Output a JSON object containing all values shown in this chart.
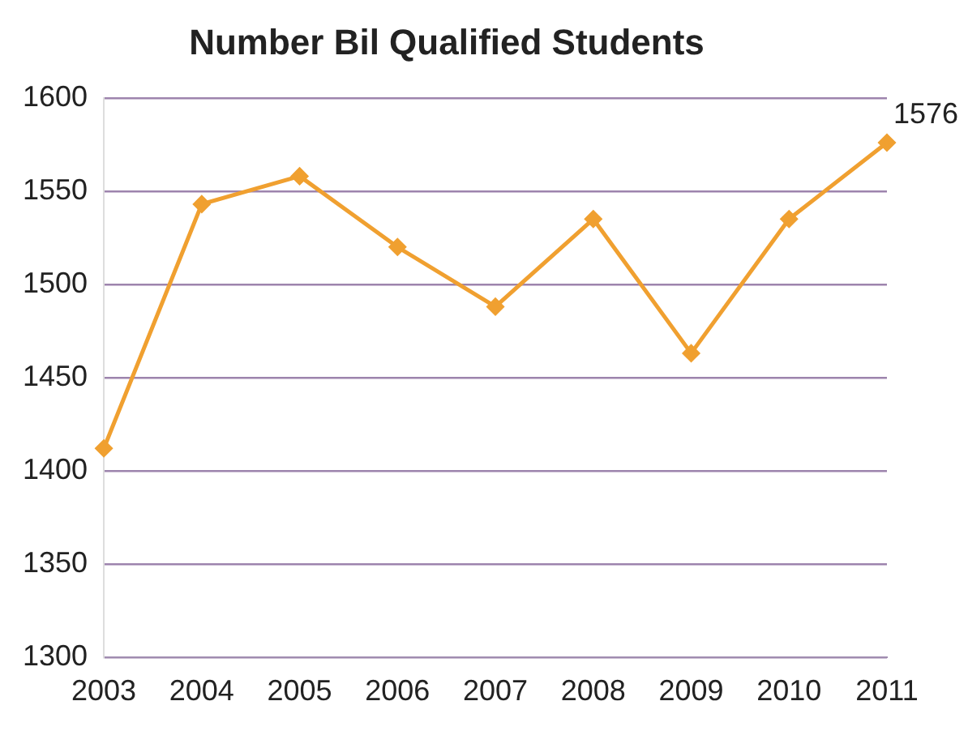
{
  "chart_data": {
    "type": "line",
    "title": "Number Bil Qualified Students",
    "categories": [
      "2003",
      "2004",
      "2005",
      "2006",
      "2007",
      "2008",
      "2009",
      "2010",
      "2011"
    ],
    "series": [
      {
        "color": "#f0a030",
        "values": [
          1412,
          1543,
          1558,
          1520,
          1488,
          1535,
          1463,
          1535,
          1576
        ],
        "value_labels": [
          null,
          null,
          null,
          null,
          null,
          null,
          null,
          null,
          "1576"
        ]
      }
    ],
    "ylim": [
      1300,
      1600
    ],
    "yticks": [
      1300,
      1350,
      1400,
      1450,
      1500,
      1550,
      1600
    ],
    "grid": "y",
    "legend": false,
    "marker": "diamond",
    "line_style": "solid"
  }
}
